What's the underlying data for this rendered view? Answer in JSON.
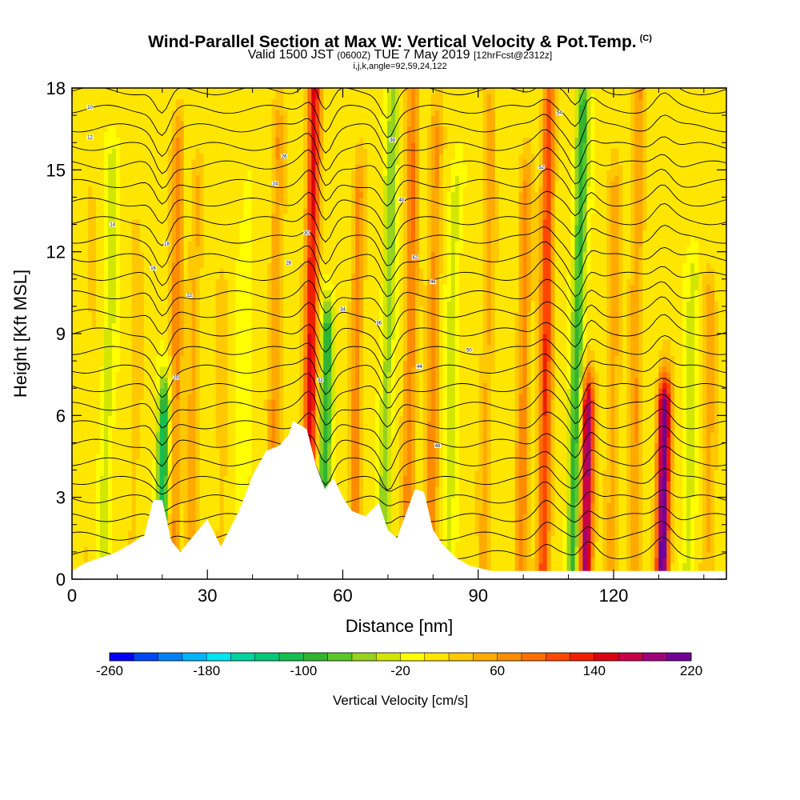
{
  "title": {
    "main": "Wind-Parallel Section at Max W: Vertical Velocity & Pot.Temp.",
    "mark": "(C)",
    "valid_a": "Valid 1500 JST",
    "valid_b": "(0600Z)",
    "valid_c": "TUE 7 May 2019",
    "valid_d": "[12hrFcst@2312z]",
    "indices": "i,j,k,angle=92,59,24,122"
  },
  "chart_data": {
    "type": "heatmap",
    "xlabel": "Distance [nm]",
    "ylabel": "Height [Kft MSL]",
    "xlim": [
      0,
      145
    ],
    "ylim": [
      0,
      18
    ],
    "x_ticks": [
      "0",
      "30",
      "60",
      "90",
      "120"
    ],
    "x_tick_values": [
      0,
      30,
      60,
      90,
      120
    ],
    "y_ticks": [
      "0",
      "3",
      "6",
      "9",
      "12",
      "15",
      "18"
    ],
    "y_tick_values": [
      0,
      3,
      6,
      9,
      12,
      15,
      18
    ],
    "colorbar": {
      "label": "Vertical Velocity [cm/s]",
      "tick_labels": [
        "-260",
        "-180",
        "-100",
        "-20",
        "60",
        "140",
        "220"
      ],
      "tick_values": [
        -260,
        -180,
        -100,
        -20,
        60,
        140,
        220
      ],
      "min": -260,
      "max": 220,
      "step": 20,
      "colors": [
        "#0000f5",
        "#0046f5",
        "#0082f5",
        "#00b4f5",
        "#00e6f0",
        "#00d2a0",
        "#00c878",
        "#14be50",
        "#32b432",
        "#5ac828",
        "#96d21e",
        "#d2e600",
        "#ffff00",
        "#ffe600",
        "#ffc800",
        "#ffaa00",
        "#ff8c00",
        "#ff6e00",
        "#ff4600",
        "#f01e00",
        "#dc0014",
        "#c80046",
        "#a00078",
        "#6e0096"
      ]
    },
    "vertical_velocity_features": [
      {
        "x": 4,
        "top": 14,
        "w": 10
      },
      {
        "x": 8,
        "top": 15,
        "w": -40
      },
      {
        "x": 14,
        "top": 12,
        "w": 20
      },
      {
        "x": 20,
        "top": 6,
        "w": -120
      },
      {
        "x": 23,
        "top": 16,
        "w": 60
      },
      {
        "x": 27,
        "top": 14,
        "w": 40
      },
      {
        "x": 33,
        "top": 10,
        "w": 20
      },
      {
        "x": 38,
        "top": 14,
        "w": -20
      },
      {
        "x": 45,
        "top": 16,
        "w": 50
      },
      {
        "x": 53,
        "top": 18,
        "w": 140
      },
      {
        "x": 56,
        "top": 9,
        "w": -100
      },
      {
        "x": 63,
        "top": 14,
        "w": 60
      },
      {
        "x": 70,
        "top": 18,
        "w": -60
      },
      {
        "x": 75,
        "top": 18,
        "w": 70
      },
      {
        "x": 80,
        "top": 16,
        "w": 60
      },
      {
        "x": 84,
        "top": 14,
        "w": -40
      },
      {
        "x": 92,
        "top": 17,
        "w": 40
      },
      {
        "x": 100,
        "top": 14,
        "w": 60
      },
      {
        "x": 105,
        "top": 17,
        "w": 110
      },
      {
        "x": 112,
        "top": 17,
        "w": -100
      },
      {
        "x": 114,
        "top": 6,
        "w": 190
      },
      {
        "x": 120,
        "top": 14,
        "w": 40
      },
      {
        "x": 125,
        "top": 18,
        "w": 50
      },
      {
        "x": 131,
        "top": 6,
        "w": 220
      },
      {
        "x": 137,
        "top": 11,
        "w": -40
      },
      {
        "x": 141,
        "top": 10,
        "w": 40
      }
    ],
    "terrain_kft": [
      [
        0,
        0.3
      ],
      [
        3,
        0.6
      ],
      [
        10,
        1.0
      ],
      [
        13,
        1.3
      ],
      [
        16,
        1.6
      ],
      [
        18,
        2.9
      ],
      [
        20,
        2.9
      ],
      [
        22,
        1.4
      ],
      [
        24,
        1.0
      ],
      [
        27,
        1.6
      ],
      [
        30,
        2.2
      ],
      [
        33,
        1.2
      ],
      [
        37,
        2.5
      ],
      [
        40,
        3.8
      ],
      [
        43,
        4.7
      ],
      [
        46,
        4.9
      ],
      [
        48,
        5.3
      ],
      [
        49,
        5.8
      ],
      [
        52,
        5.5
      ],
      [
        54,
        4.2
      ],
      [
        56,
        3.3
      ],
      [
        58,
        3.7
      ],
      [
        60,
        3.0
      ],
      [
        62,
        2.5
      ],
      [
        65,
        2.3
      ],
      [
        68,
        2.8
      ],
      [
        70,
        1.8
      ],
      [
        72,
        1.5
      ],
      [
        74,
        2.4
      ],
      [
        76,
        3.3
      ],
      [
        78,
        3.2
      ],
      [
        80,
        1.8
      ],
      [
        82,
        1.3
      ],
      [
        85,
        0.8
      ],
      [
        88,
        0.5
      ],
      [
        93,
        0.3
      ],
      [
        145,
        0.3
      ]
    ],
    "contour_labels": [
      "10",
      "12",
      "14",
      "16",
      "18",
      "20",
      "22",
      "24",
      "26",
      "28",
      "30",
      "32",
      "34",
      "36",
      "38",
      "40",
      "42",
      "44",
      "46",
      "48",
      "50",
      "52",
      "54"
    ]
  }
}
